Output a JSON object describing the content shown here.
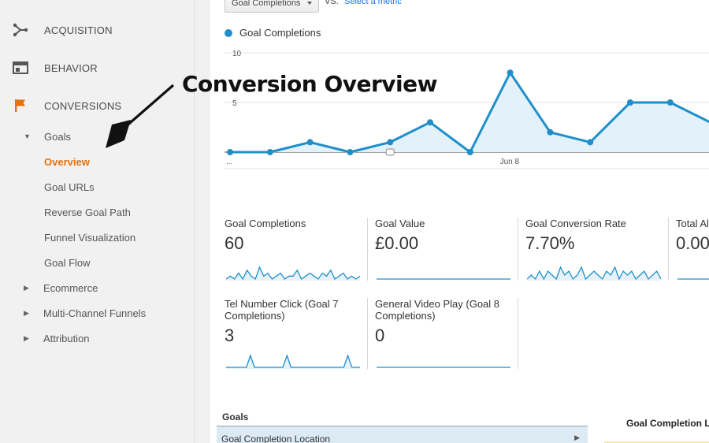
{
  "sidebar": {
    "sections": [
      {
        "label": "ACQUISITION",
        "icon": "acquisition-icon"
      },
      {
        "label": "BEHAVIOR",
        "icon": "behavior-icon"
      },
      {
        "label": "CONVERSIONS",
        "icon": "flag-icon"
      }
    ],
    "goals_label": "Goals",
    "goals_items": [
      "Overview",
      "Goal URLs",
      "Reverse Goal Path",
      "Funnel Visualization",
      "Goal Flow"
    ],
    "other_items": [
      "Ecommerce",
      "Multi-Channel Funnels",
      "Attribution"
    ],
    "active_item": "Overview",
    "accent_color": "#e8710a"
  },
  "toolbar": {
    "metric_select_value": "Goal Completions",
    "vs_label": "VS.",
    "select_metric_link": "Select a metric"
  },
  "annotation": {
    "text": "Conversion Overview"
  },
  "chart_data": {
    "type": "area",
    "series": [
      {
        "name": "Goal Completions",
        "color": "#1f8fcb",
        "values": [
          0,
          0,
          1,
          0,
          1,
          3,
          0,
          8,
          2,
          1,
          5,
          5,
          3
        ]
      }
    ],
    "x_tick_labels": [
      "...",
      "Jun 8"
    ],
    "y_tick_labels": [
      "10",
      "5"
    ],
    "ylim": [
      0,
      10
    ],
    "grid": true
  },
  "scorecards": [
    {
      "title": "Goal Completions",
      "value": "60",
      "spark": [
        0,
        1,
        0,
        2,
        0,
        3,
        1,
        0,
        4,
        1,
        2,
        0,
        1,
        2,
        0,
        1,
        1,
        3,
        0,
        1,
        2,
        1,
        0,
        2,
        1,
        3,
        0,
        1,
        2,
        0,
        1,
        0,
        1
      ]
    },
    {
      "title": "Goal Value",
      "value": "£0.00",
      "spark": [
        0,
        0,
        0,
        0,
        0,
        0,
        0,
        0,
        0,
        0,
        0,
        0,
        0,
        0,
        0,
        0,
        0,
        0,
        0,
        0,
        0,
        0,
        0,
        0,
        0,
        0,
        0,
        0,
        0,
        0,
        0,
        0,
        0
      ]
    },
    {
      "title": "Goal Conversion Rate",
      "value": "7.70%",
      "spark": [
        0,
        1,
        0,
        2,
        0,
        2,
        1,
        0,
        3,
        1,
        2,
        0,
        1,
        3,
        0,
        1,
        2,
        1,
        0,
        2,
        1,
        3,
        0,
        2,
        1,
        2,
        0,
        1,
        2,
        0,
        1,
        2,
        0
      ]
    },
    {
      "title": "Total Al",
      "value": "0.00",
      "spark": [
        0,
        0,
        0,
        0,
        0,
        0,
        0,
        0,
        0,
        0,
        0,
        0
      ]
    },
    {
      "title": "Tel Number Click (Goal 7 Completions)",
      "value": "3",
      "spark": [
        0,
        0,
        0,
        0,
        0,
        0,
        3,
        0,
        0,
        0,
        0,
        0,
        0,
        0,
        0,
        3,
        0,
        0,
        0,
        0,
        0,
        0,
        0,
        0,
        0,
        0,
        0,
        0,
        0,
        0,
        3,
        0,
        0,
        0
      ]
    },
    {
      "title": "General Video Play (Goal 8 Completions)",
      "value": "0",
      "spark": [
        0,
        0,
        0,
        0,
        0,
        0,
        0,
        0,
        0,
        0,
        0,
        0,
        0,
        0,
        0,
        0,
        0,
        0,
        0,
        0,
        0,
        0,
        0,
        0,
        0,
        0,
        0,
        0,
        0,
        0,
        0,
        0,
        0,
        0
      ]
    }
  ],
  "bottom": {
    "goals_header": "Goals",
    "goals_row": "Goal Completion Location",
    "completion_header": "Goal Completion L"
  }
}
